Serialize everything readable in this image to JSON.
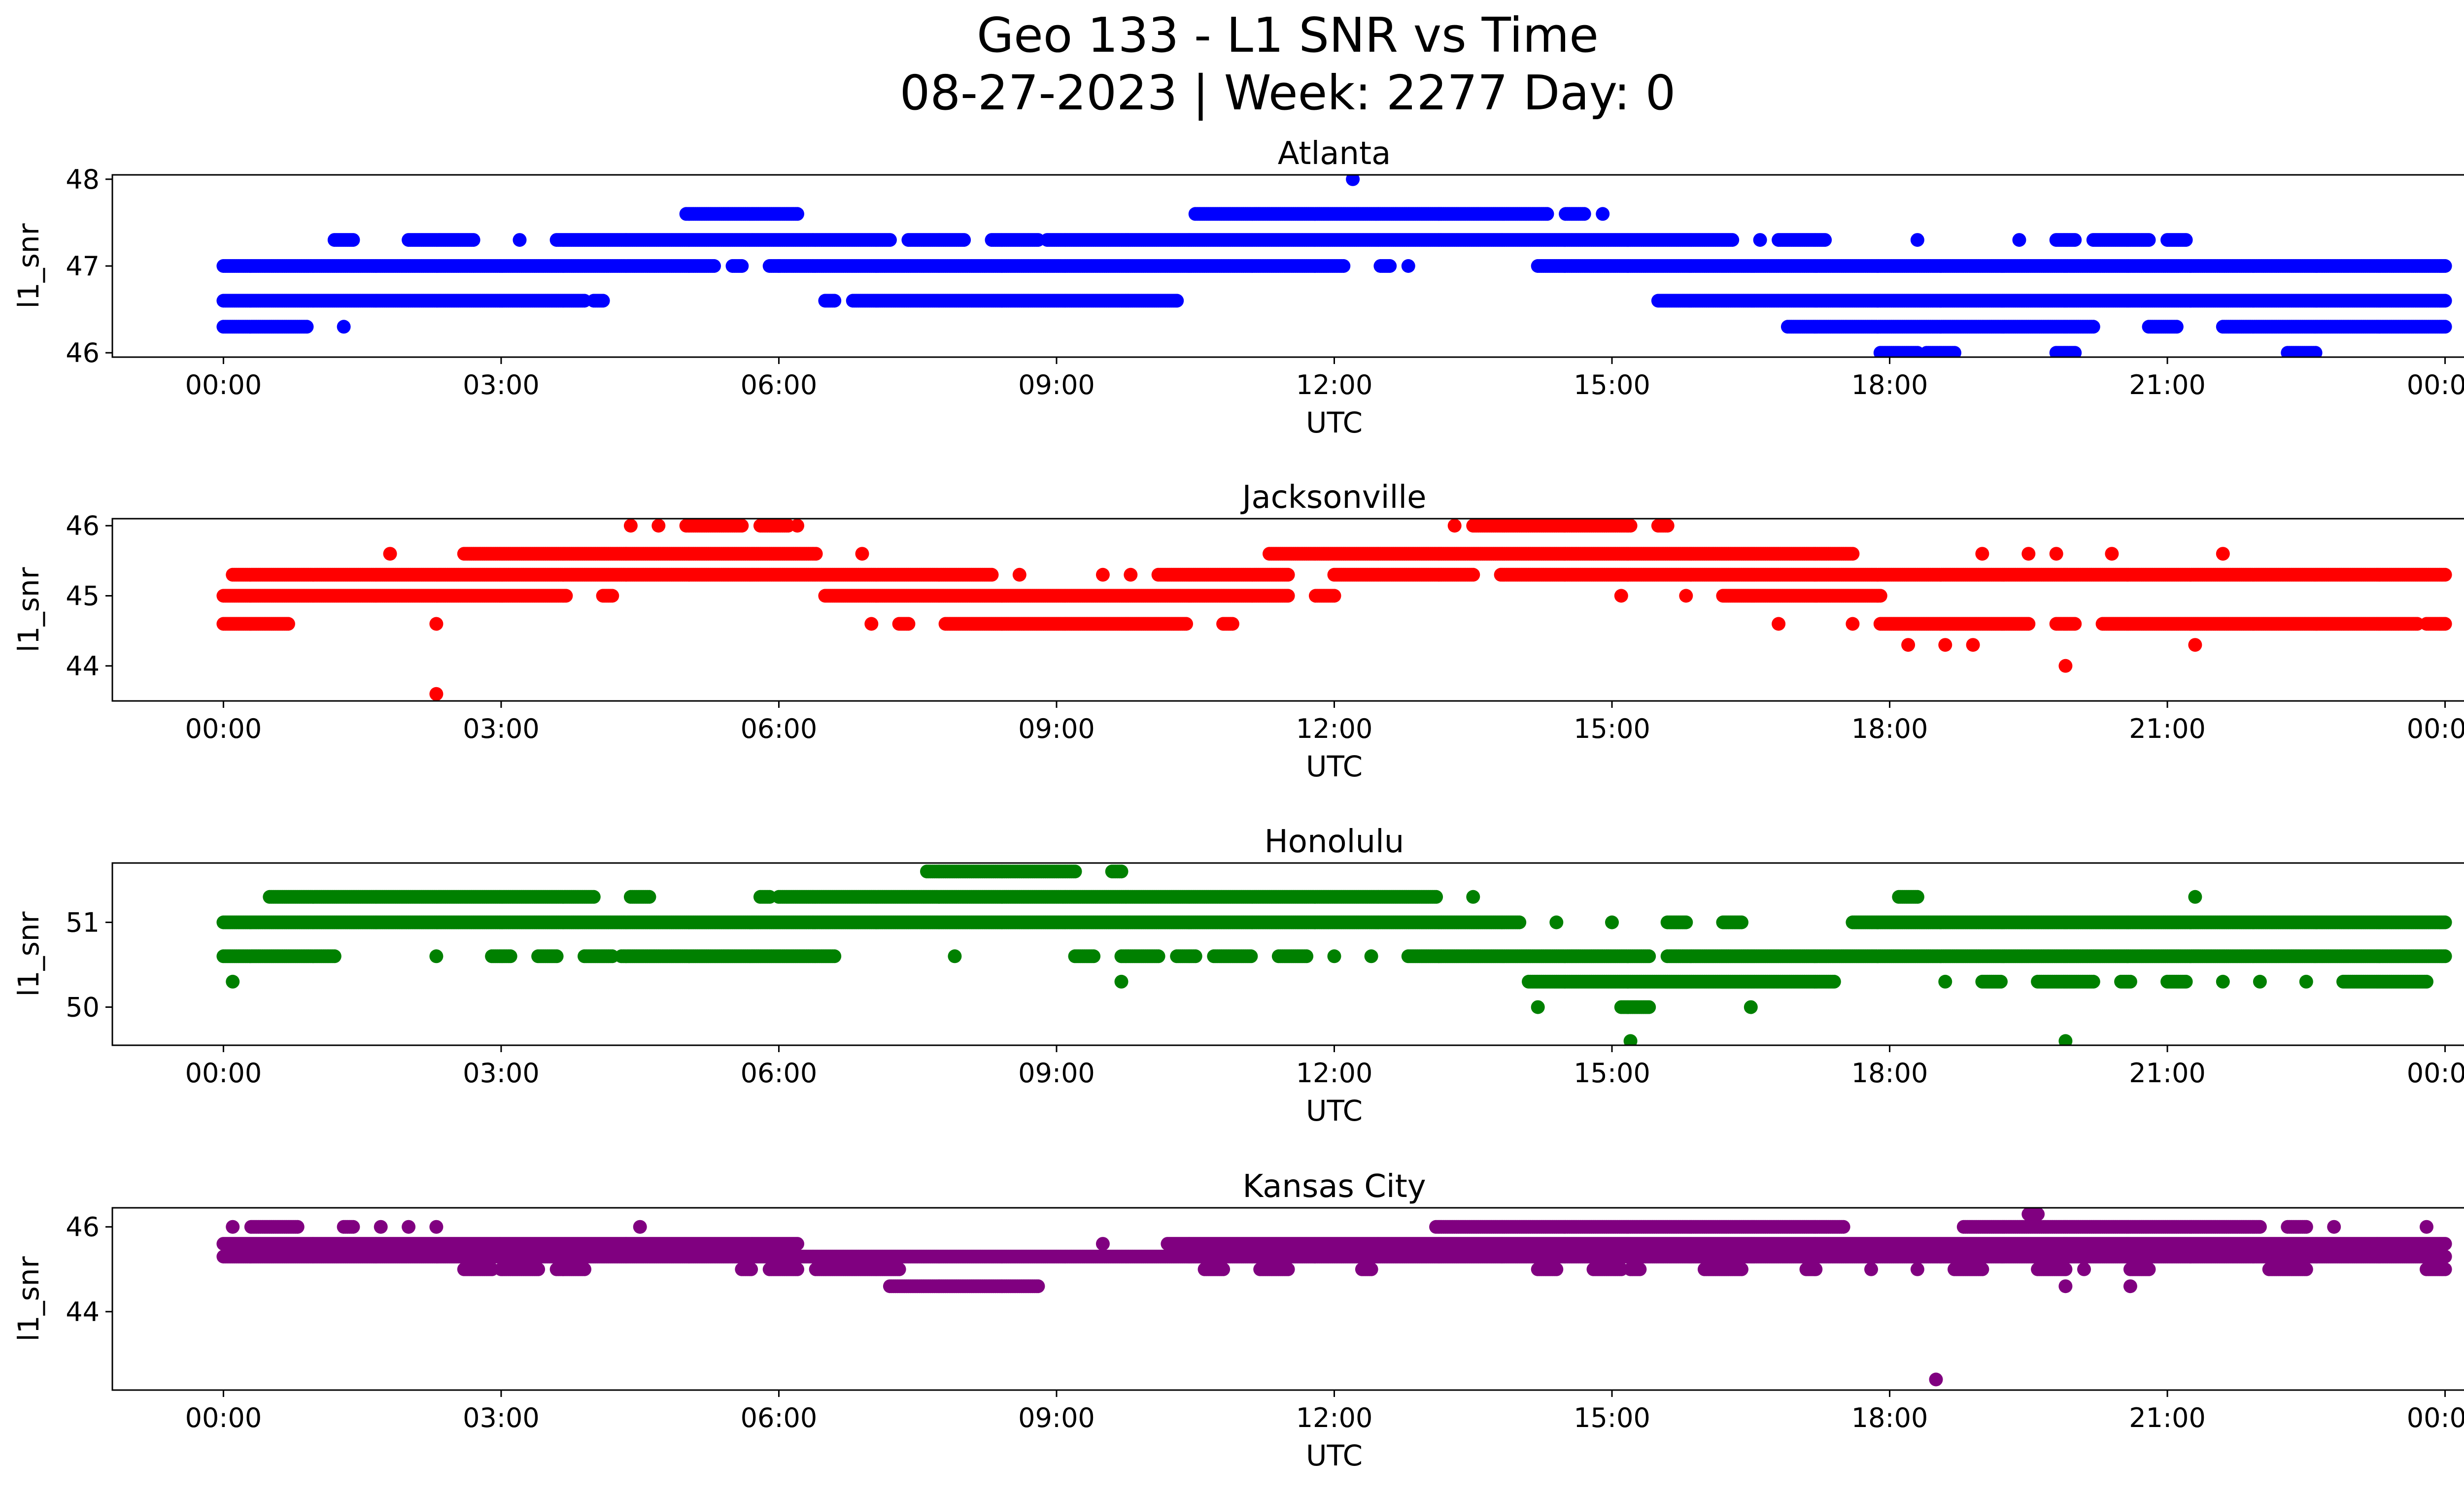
{
  "figure": {
    "title_line1": "Geo 133 - L1 SNR vs Time",
    "title_line2": "08-27-2023 | Week: 2277 Day: 0"
  },
  "chart_data": [
    {
      "type": "scatter",
      "title": "Atlanta",
      "xlabel": "UTC",
      "ylabel": "l1_snr",
      "color": "#0000ff",
      "xlim_hours": [
        -1.2,
        25.2
      ],
      "ylim": [
        45.95,
        48.05
      ],
      "xticks": [
        "00:00",
        "03:00",
        "06:00",
        "09:00",
        "12:00",
        "15:00",
        "18:00",
        "21:00",
        "00:00"
      ],
      "yticks": [
        46,
        47,
        48
      ],
      "levels": [
        {
          "y": 46.0,
          "segments": [
            [
              17.9,
              18.3
            ],
            [
              18.4,
              18.7
            ],
            [
              19.8,
              20.0
            ],
            [
              22.3,
              22.6
            ]
          ]
        },
        {
          "y": 46.3,
          "segments": [
            [
              0.0,
              0.9
            ],
            [
              1.3,
              1.3
            ],
            [
              16.9,
              20.2
            ],
            [
              20.8,
              21.1
            ],
            [
              21.6,
              24.0
            ]
          ]
        },
        {
          "y": 46.6,
          "segments": [
            [
              0.0,
              3.9
            ],
            [
              4.0,
              4.1
            ],
            [
              6.5,
              6.6
            ],
            [
              6.8,
              10.3
            ],
            [
              15.5,
              24.0
            ]
          ]
        },
        {
          "y": 47.0,
          "segments": [
            [
              0.0,
              5.3
            ],
            [
              5.5,
              5.6
            ],
            [
              5.9,
              6.0
            ],
            [
              6.0,
              12.1
            ],
            [
              12.5,
              12.6
            ],
            [
              12.8,
              12.8
            ],
            [
              14.2,
              24.0
            ]
          ]
        },
        {
          "y": 47.3,
          "segments": [
            [
              1.2,
              1.4
            ],
            [
              2.0,
              2.7
            ],
            [
              3.2,
              3.2
            ],
            [
              3.6,
              7.2
            ],
            [
              7.4,
              8.0
            ],
            [
              8.3,
              8.8
            ],
            [
              8.9,
              16.3
            ],
            [
              16.6,
              16.6
            ],
            [
              16.8,
              17.3
            ],
            [
              18.3,
              18.3
            ],
            [
              19.4,
              19.4
            ],
            [
              19.8,
              20.0
            ],
            [
              20.2,
              20.8
            ],
            [
              21.0,
              21.2
            ]
          ]
        },
        {
          "y": 47.6,
          "segments": [
            [
              5.0,
              6.2
            ],
            [
              10.5,
              14.3
            ],
            [
              14.5,
              14.7
            ],
            [
              14.9,
              14.9
            ]
          ]
        },
        {
          "y": 48.0,
          "segments": [
            [
              12.2,
              12.2
            ]
          ]
        }
      ]
    },
    {
      "type": "scatter",
      "title": "Jacksonville",
      "xlabel": "UTC",
      "ylabel": "l1_snr",
      "color": "#ff0000",
      "xlim_hours": [
        -1.2,
        25.2
      ],
      "ylim": [
        43.5,
        46.1
      ],
      "xticks": [
        "00:00",
        "03:00",
        "06:00",
        "09:00",
        "12:00",
        "15:00",
        "18:00",
        "21:00",
        "00:00"
      ],
      "yticks": [
        44,
        45,
        46
      ],
      "levels": [
        {
          "y": 43.6,
          "segments": [
            [
              2.3,
              2.3
            ]
          ]
        },
        {
          "y": 44.0,
          "segments": [
            [
              19.9,
              19.9
            ]
          ]
        },
        {
          "y": 44.3,
          "segments": [
            [
              18.2,
              18.2
            ],
            [
              18.6,
              18.6
            ],
            [
              18.9,
              18.9
            ],
            [
              21.3,
              21.3
            ]
          ]
        },
        {
          "y": 44.6,
          "segments": [
            [
              0.0,
              0.7
            ],
            [
              2.3,
              2.3
            ],
            [
              7.0,
              7.0
            ],
            [
              7.3,
              7.4
            ],
            [
              7.8,
              10.4
            ],
            [
              10.8,
              10.9
            ],
            [
              16.8,
              16.8
            ],
            [
              17.6,
              17.6
            ],
            [
              17.9,
              19.5
            ],
            [
              19.8,
              20.0
            ],
            [
              20.3,
              23.7
            ],
            [
              23.8,
              24.0
            ]
          ]
        },
        {
          "y": 45.0,
          "segments": [
            [
              0.0,
              3.7
            ],
            [
              4.1,
              4.2
            ],
            [
              6.5,
              11.5
            ],
            [
              11.8,
              12.0
            ],
            [
              15.1,
              15.1
            ],
            [
              15.8,
              15.8
            ],
            [
              16.2,
              17.9
            ]
          ]
        },
        {
          "y": 45.3,
          "segments": [
            [
              0.1,
              8.3
            ],
            [
              8.6,
              8.6
            ],
            [
              9.5,
              9.5
            ],
            [
              9.8,
              9.8
            ],
            [
              10.1,
              11.5
            ],
            [
              12.0,
              13.5
            ],
            [
              13.8,
              24.0
            ]
          ]
        },
        {
          "y": 45.6,
          "segments": [
            [
              1.8,
              1.8
            ],
            [
              2.6,
              6.4
            ],
            [
              6.9,
              6.9
            ],
            [
              11.3,
              17.6
            ],
            [
              19.0,
              19.0
            ],
            [
              19.5,
              19.5
            ],
            [
              19.8,
              19.8
            ],
            [
              20.4,
              20.4
            ],
            [
              21.6,
              21.6
            ]
          ]
        },
        {
          "y": 46.0,
          "segments": [
            [
              4.4,
              4.4
            ],
            [
              4.7,
              4.7
            ],
            [
              5.0,
              5.6
            ],
            [
              5.8,
              6.1
            ],
            [
              6.2,
              6.2
            ],
            [
              13.3,
              13.3
            ],
            [
              13.5,
              15.2
            ],
            [
              15.5,
              15.6
            ]
          ]
        }
      ]
    },
    {
      "type": "scatter",
      "title": "Honolulu",
      "xlabel": "UTC",
      "ylabel": "l1_snr",
      "color": "#008000",
      "xlim_hours": [
        -1.2,
        25.2
      ],
      "ylim": [
        49.55,
        51.7
      ],
      "xticks": [
        "00:00",
        "03:00",
        "06:00",
        "09:00",
        "12:00",
        "15:00",
        "18:00",
        "21:00",
        "00:00"
      ],
      "yticks": [
        50,
        51
      ],
      "levels": [
        {
          "y": 49.6,
          "segments": [
            [
              15.2,
              15.2
            ],
            [
              19.9,
              19.9
            ]
          ]
        },
        {
          "y": 50.0,
          "segments": [
            [
              14.2,
              14.2
            ],
            [
              15.1,
              15.4
            ],
            [
              16.5,
              16.5
            ]
          ]
        },
        {
          "y": 50.3,
          "segments": [
            [
              0.1,
              0.1
            ],
            [
              9.7,
              9.7
            ],
            [
              14.1,
              17.4
            ],
            [
              18.6,
              18.6
            ],
            [
              19.0,
              19.2
            ],
            [
              19.6,
              20.2
            ],
            [
              20.5,
              20.6
            ],
            [
              21.0,
              21.2
            ],
            [
              21.6,
              21.6
            ],
            [
              22.0,
              22.0
            ],
            [
              22.5,
              22.5
            ],
            [
              22.9,
              23.8
            ]
          ]
        },
        {
          "y": 50.6,
          "segments": [
            [
              0.0,
              1.2
            ],
            [
              2.3,
              2.3
            ],
            [
              2.9,
              3.1
            ],
            [
              3.4,
              3.6
            ],
            [
              3.9,
              4.2
            ],
            [
              4.3,
              6.6
            ],
            [
              7.9,
              7.9
            ],
            [
              9.2,
              9.4
            ],
            [
              9.7,
              10.1
            ],
            [
              10.3,
              10.5
            ],
            [
              10.7,
              11.1
            ],
            [
              11.4,
              11.7
            ],
            [
              12.0,
              12.0
            ],
            [
              12.4,
              12.4
            ],
            [
              12.8,
              15.4
            ],
            [
              15.6,
              24.0
            ]
          ]
        },
        {
          "y": 51.0,
          "segments": [
            [
              0.0,
              14.0
            ],
            [
              14.4,
              14.4
            ],
            [
              15.0,
              15.0
            ],
            [
              15.6,
              15.8
            ],
            [
              16.2,
              16.4
            ],
            [
              17.6,
              24.0
            ]
          ]
        },
        {
          "y": 51.3,
          "segments": [
            [
              0.5,
              4.0
            ],
            [
              4.4,
              4.6
            ],
            [
              5.8,
              5.9
            ],
            [
              6.0,
              13.1
            ],
            [
              13.5,
              13.5
            ],
            [
              18.1,
              18.3
            ],
            [
              21.3,
              21.3
            ]
          ]
        },
        {
          "y": 51.6,
          "segments": [
            [
              7.6,
              9.2
            ],
            [
              9.6,
              9.7
            ]
          ]
        }
      ]
    },
    {
      "type": "scatter",
      "title": "Kansas City",
      "xlabel": "UTC",
      "ylabel": "l1_snr",
      "color": "#800080",
      "xlim_hours": [
        -1.2,
        25.2
      ],
      "ylim": [
        42.15,
        46.45
      ],
      "xticks": [
        "00:00",
        "03:00",
        "06:00",
        "09:00",
        "12:00",
        "15:00",
        "18:00",
        "21:00",
        "00:00"
      ],
      "yticks": [
        44,
        46
      ],
      "levels": [
        {
          "y": 42.4,
          "segments": [
            [
              18.5,
              18.5
            ]
          ]
        },
        {
          "y": 44.6,
          "segments": [
            [
              7.2,
              8.8
            ],
            [
              19.9,
              19.9
            ],
            [
              20.6,
              20.6
            ]
          ]
        },
        {
          "y": 45.0,
          "segments": [
            [
              2.6,
              2.9
            ],
            [
              3.0,
              3.4
            ],
            [
              3.6,
              3.9
            ],
            [
              5.6,
              5.7
            ],
            [
              5.9,
              6.2
            ],
            [
              6.4,
              7.3
            ],
            [
              10.6,
              10.8
            ],
            [
              11.2,
              11.5
            ],
            [
              12.3,
              12.4
            ],
            [
              14.2,
              14.4
            ],
            [
              14.8,
              15.1
            ],
            [
              15.2,
              15.3
            ],
            [
              16.0,
              16.4
            ],
            [
              17.1,
              17.2
            ],
            [
              17.8,
              17.8
            ],
            [
              18.3,
              18.3
            ],
            [
              18.7,
              19.0
            ],
            [
              19.6,
              19.9
            ],
            [
              20.1,
              20.1
            ],
            [
              20.6,
              20.8
            ],
            [
              22.1,
              22.5
            ],
            [
              23.8,
              24.0
            ]
          ]
        },
        {
          "y": 45.3,
          "segments": [
            [
              0.0,
              24.0
            ]
          ]
        },
        {
          "y": 45.6,
          "segments": [
            [
              0.0,
              6.2
            ],
            [
              9.5,
              9.5
            ],
            [
              10.2,
              24.0
            ]
          ]
        },
        {
          "y": 46.0,
          "segments": [
            [
              0.1,
              0.1
            ],
            [
              0.3,
              0.8
            ],
            [
              1.3,
              1.4
            ],
            [
              1.7,
              1.7
            ],
            [
              2.0,
              2.0
            ],
            [
              2.3,
              2.3
            ],
            [
              4.5,
              4.5
            ],
            [
              13.1,
              17.5
            ],
            [
              18.8,
              22.0
            ],
            [
              22.3,
              22.5
            ],
            [
              22.8,
              22.8
            ],
            [
              23.8,
              23.8
            ]
          ]
        },
        {
          "y": 46.3,
          "segments": [
            [
              19.5,
              19.6
            ]
          ]
        }
      ]
    }
  ]
}
